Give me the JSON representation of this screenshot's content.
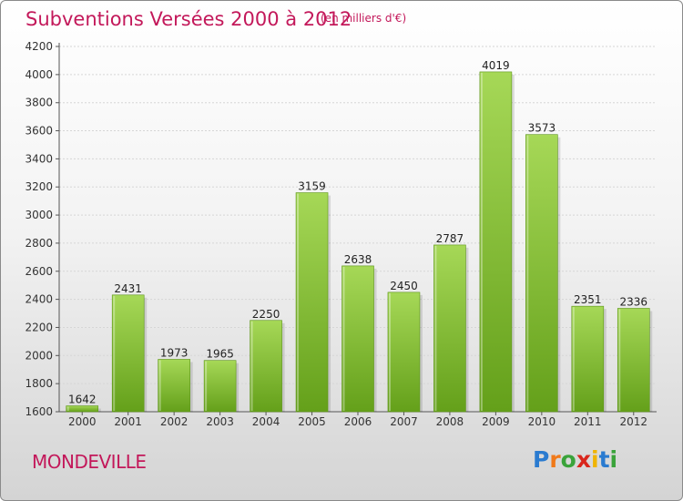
{
  "header": {
    "title": "Subventions Versées 2000 à 2012",
    "subtitle": "(en milliers d'€)"
  },
  "footer": {
    "commune": "MONDEVILLE",
    "logo": {
      "letters": [
        "P",
        "r",
        "o",
        "x",
        "i",
        "t",
        "i"
      ],
      "colors": [
        "#2a7bd0",
        "#f07a1a",
        "#3aa33a",
        "#d9261c",
        "#f0b400",
        "#2a7bd0",
        "#3aa33a"
      ]
    }
  },
  "chart_data": {
    "type": "bar",
    "categories": [
      "2000",
      "2001",
      "2002",
      "2003",
      "2004",
      "2005",
      "2006",
      "2007",
      "2008",
      "2009",
      "2010",
      "2011",
      "2012"
    ],
    "values": [
      1642,
      2431,
      1973,
      1965,
      2250,
      3159,
      2638,
      2450,
      2787,
      4019,
      3573,
      2351,
      2336
    ],
    "data_labels": [
      "1642",
      "2431",
      "1973",
      "1965",
      "2250",
      "3159",
      "2638",
      "2450",
      "2787",
      "4019",
      "3573",
      "2351",
      "2336"
    ],
    "yticks": [
      1600,
      1800,
      2000,
      2200,
      2400,
      2600,
      2800,
      3000,
      3200,
      3400,
      3600,
      3800,
      4000,
      4200
    ],
    "ylim": [
      1600,
      4200
    ],
    "grid": true,
    "bar_color_top": "#a6d857",
    "bar_color_bottom": "#64a01a"
  }
}
